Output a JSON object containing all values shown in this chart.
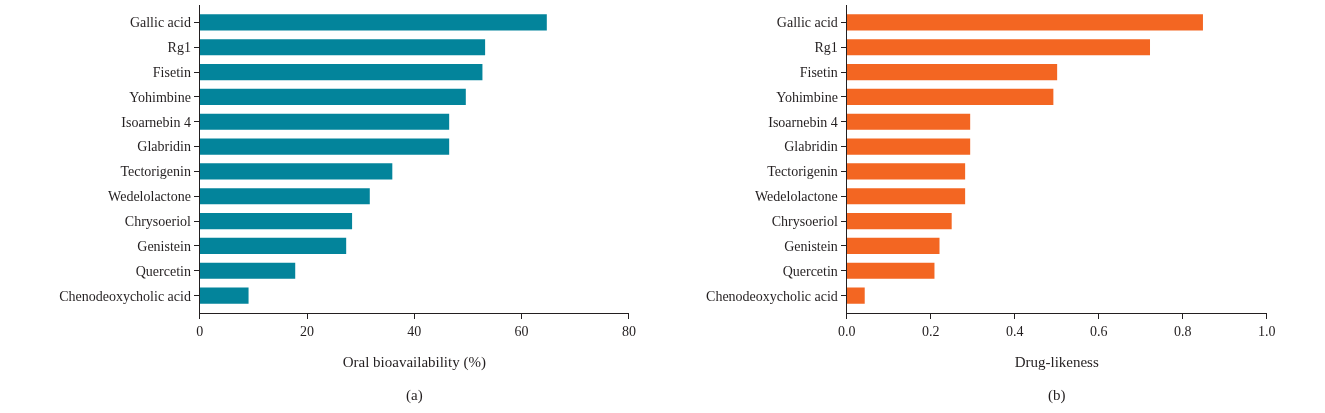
{
  "chart_data": [
    {
      "type": "bar",
      "orientation": "horizontal",
      "categories": [
        "Gallic acid",
        "Rg1",
        "Fisetin",
        "Yohimbine",
        "Isoarnebin 4",
        "Glabridin",
        "Tectorigenin",
        "Wedelolactone",
        "Chrysoeriol",
        "Genistein",
        "Quercetin",
        "Chenodeoxycholic acid"
      ],
      "values": [
        64.7,
        53.2,
        52.7,
        49.6,
        46.5,
        46.5,
        35.9,
        31.7,
        28.4,
        27.3,
        17.8,
        9.1
      ],
      "color": "#03849b",
      "xlabel": "Oral bioavailability (%)",
      "xlim": [
        0,
        80
      ],
      "xticks": [
        0,
        20,
        40,
        60,
        80
      ],
      "annotations": [
        "(a)"
      ]
    },
    {
      "type": "bar",
      "orientation": "horizontal",
      "categories": [
        "Gallic acid",
        "Rg1",
        "Fisetin",
        "Yohimbine",
        "Isoarnebin 4",
        "Glabridin",
        "Tectorigenin",
        "Wedelolactone",
        "Chrysoeriol",
        "Genistein",
        "Quercetin",
        "Chenodeoxycholic acid"
      ],
      "values": [
        0.848,
        0.722,
        0.501,
        0.492,
        0.294,
        0.294,
        0.282,
        0.282,
        0.25,
        0.221,
        0.209,
        0.043
      ],
      "color": "#f36622",
      "xlabel": "Drug-likeness",
      "xlim": [
        0,
        1.0
      ],
      "xticks": [
        {
          "value": 0,
          "label": "0.0"
        },
        0.2,
        0.4,
        0.6,
        0.8,
        {
          "value": 1.0,
          "label": "1.0"
        }
      ],
      "annotations": [
        "(b)"
      ]
    }
  ]
}
